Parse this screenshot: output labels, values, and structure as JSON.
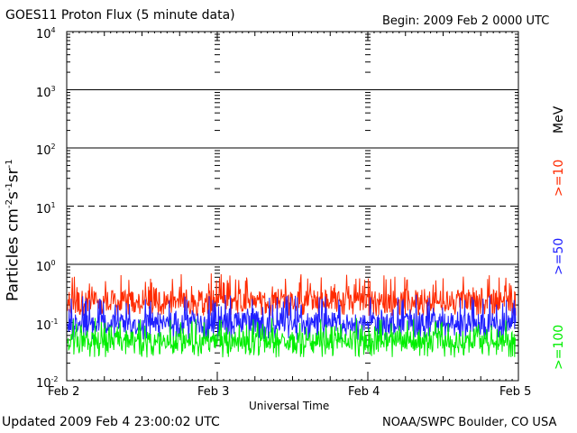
{
  "header": {
    "title": "GOES11 Proton Flux (5 minute data)",
    "begin": "Begin: 2009 Feb 2 0000 UTC"
  },
  "footer": {
    "updated": "Updated 2009 Feb  4 23:00:02 UTC",
    "credit": "NOAA/SWPC Boulder, CO USA"
  },
  "legend": {
    "unit": "MeV",
    "items": [
      {
        "label": ">=10",
        "color": "#ff2a00"
      },
      {
        "label": ">=50",
        "color": "#2020ff"
      },
      {
        "label": ">=100",
        "color": "#00ee00"
      }
    ]
  },
  "chart_data": {
    "type": "line",
    "title": "GOES11 Proton Flux (5 minute data)",
    "xlabel": "Universal Time",
    "ylabel_parts": [
      "Particles cm",
      "-2",
      "s",
      "-1",
      "sr",
      "-1"
    ],
    "y_scale": "log",
    "ylim": [
      0.01,
      10000
    ],
    "y_ticks": [
      {
        "base": "10",
        "exp": "-2",
        "value": 0.01
      },
      {
        "base": "10",
        "exp": "-1",
        "value": 0.1
      },
      {
        "base": "10",
        "exp": "0",
        "value": 1
      },
      {
        "base": "10",
        "exp": "1",
        "value": 10
      },
      {
        "base": "10",
        "exp": "2",
        "value": 100
      },
      {
        "base": "10",
        "exp": "3",
        "value": 1000
      },
      {
        "base": "10",
        "exp": "4",
        "value": 10000
      }
    ],
    "x_ticks": [
      "Feb 2",
      "Feb 3",
      "Feb 4",
      "Feb 5"
    ],
    "xlim": [
      "2009-02-02T00:00Z",
      "2009-02-05T00:00Z"
    ],
    "reference_lines": [
      {
        "value": 1,
        "style": "solid"
      },
      {
        "value": 10,
        "style": "dashed"
      },
      {
        "value": 100,
        "style": "solid"
      },
      {
        "value": 1000,
        "style": "solid"
      }
    ],
    "series": [
      {
        "name": ">=10",
        "color": "#ff2a00",
        "min": 0.13,
        "max": 0.7,
        "typical": 0.25
      },
      {
        "name": ">=50",
        "color": "#2020ff",
        "min": 0.05,
        "max": 0.3,
        "typical": 0.1
      },
      {
        "name": ">=100",
        "color": "#00ee00",
        "min": 0.025,
        "max": 0.12,
        "typical": 0.05
      }
    ]
  }
}
